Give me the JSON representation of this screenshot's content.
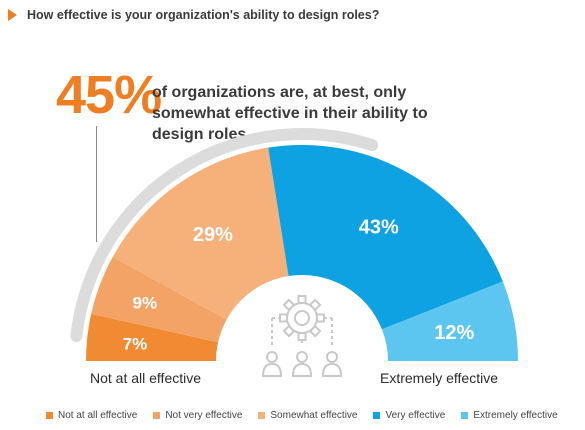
{
  "question": "How effective is your organization's ability to design roles?",
  "highlight": {
    "value": "45%",
    "text": "of organizations are, at best, only somewhat effective in their ability to design roles."
  },
  "labels": {
    "left_end": "Not at all effective",
    "right_end": "Extremely effective"
  },
  "icon": "gear-and-people-icon",
  "colors": {
    "accent": "#ef7d22",
    "text": "#3a3a3a",
    "track": "#dcdcdc",
    "icon_line": "#c8c8c8"
  },
  "chart_data": {
    "type": "pie",
    "shape": "semicircle",
    "categories": [
      "Not at all effective",
      "Not very effective",
      "Somewhat effective",
      "Very effective",
      "Extremely effective"
    ],
    "values": [
      7,
      9,
      29,
      43,
      12
    ],
    "value_labels": [
      "7%",
      "9%",
      "29%",
      "43%",
      "12%"
    ],
    "unit": "%",
    "colors": [
      "#f08b33",
      "#f4a366",
      "#f6b07a",
      "#0ea2e3",
      "#5cc6f1"
    ],
    "legend": {
      "placement": "bottom",
      "entries": [
        "Not at all effective",
        "Not very effective",
        "Somewhat effective",
        "Very effective",
        "Extremely effective"
      ]
    }
  }
}
